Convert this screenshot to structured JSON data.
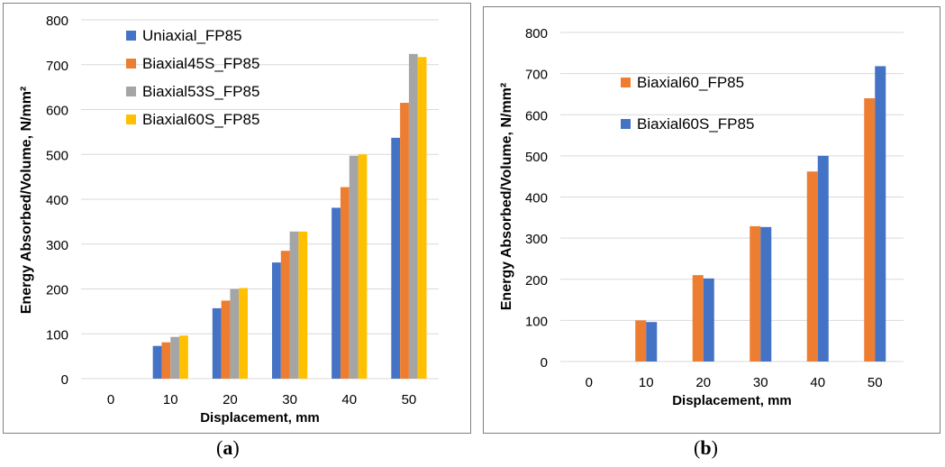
{
  "captions": {
    "a_open": "(",
    "a_letter": "a",
    "a_close": ")",
    "b_open": "(",
    "b_letter": "b",
    "b_close": ")"
  },
  "chart_data": [
    {
      "type": "bar",
      "panel": "a",
      "xlabel": "Displacement, mm",
      "ylabel": "Energy Absorbed/Volume, N/mm²",
      "categories": [
        "0",
        "10",
        "20",
        "30",
        "40",
        "50"
      ],
      "ylim": [
        0,
        800
      ],
      "yticks": [
        0,
        100,
        200,
        300,
        400,
        500,
        600,
        700,
        800
      ],
      "grid": true,
      "legend_position": "top-left",
      "series": [
        {
          "name": "Uniaxial_FP85",
          "color": "#4472C4",
          "values": [
            0,
            73,
            157,
            259,
            381,
            537
          ]
        },
        {
          "name": "Biaxial45S_FP85",
          "color": "#ED7D31",
          "values": [
            0,
            81,
            174,
            285,
            427,
            615
          ]
        },
        {
          "name": "Biaxial53S_FP85",
          "color": "#A5A5A5",
          "values": [
            0,
            93,
            200,
            328,
            497,
            724
          ]
        },
        {
          "name": "Biaxial60S_FP85",
          "color": "#FFC000",
          "values": [
            0,
            96,
            202,
            328,
            500,
            717
          ]
        }
      ]
    },
    {
      "type": "bar",
      "panel": "b",
      "xlabel": "Displacement, mm",
      "ylabel": "Energy Absorbed/Volume, N/mm²",
      "categories": [
        "0",
        "10",
        "20",
        "30",
        "40",
        "50"
      ],
      "ylim": [
        0,
        800
      ],
      "yticks": [
        0,
        100,
        200,
        300,
        400,
        500,
        600,
        700,
        800
      ],
      "grid": true,
      "legend_position": "top-left",
      "series": [
        {
          "name": "Biaxial60_FP85",
          "color": "#ED7D31",
          "values": [
            0,
            100,
            210,
            329,
            462,
            640
          ]
        },
        {
          "name": "Biaxial60S_FP85",
          "color": "#4472C4",
          "values": [
            0,
            96,
            202,
            327,
            500,
            718
          ]
        }
      ]
    }
  ]
}
